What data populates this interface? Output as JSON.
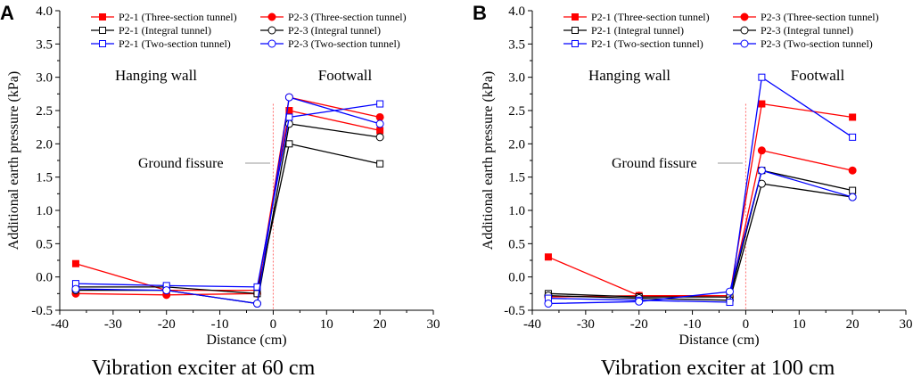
{
  "chart_data": [
    {
      "type": "line",
      "panel_label": "A",
      "title": "Vibration exciter at 60 cm",
      "xlabel": "Distance (cm)",
      "ylabel": "Additional earth pressure (kPa)",
      "xlim": [
        -40,
        30
      ],
      "ylim": [
        -0.5,
        4.0
      ],
      "xticks": [
        -40,
        -30,
        -20,
        -10,
        0,
        10,
        20,
        30
      ],
      "xtick_labels": [
        "-40",
        "-30",
        "-20",
        "-10",
        "0",
        "10",
        "20",
        "30"
      ],
      "yticks": [
        -0.5,
        0.0,
        0.5,
        1.0,
        1.5,
        2.0,
        2.5,
        3.0,
        3.5,
        4.0
      ],
      "ytick_labels": [
        "-0.5",
        "0.0",
        "0.5",
        "1.0",
        "1.5",
        "2.0",
        "2.5",
        "3.0",
        "3.5",
        "4.0"
      ],
      "x": [
        -37,
        -20,
        -3,
        3,
        20
      ],
      "series": [
        {
          "name": "P2-1 (Three-section tunnel)",
          "color": "#ff0000",
          "marker": "square-filled",
          "values": [
            0.2,
            -0.2,
            -0.2,
            2.5,
            2.2
          ]
        },
        {
          "name": "P2-3 (Three-section tunnel)",
          "color": "#ff0000",
          "marker": "circle-filled",
          "values": [
            -0.25,
            -0.27,
            -0.25,
            2.7,
            2.4
          ]
        },
        {
          "name": "P2-1 (Integral tunnel)",
          "color": "#000000",
          "marker": "square-open",
          "values": [
            -0.15,
            -0.15,
            -0.25,
            2.0,
            1.7
          ]
        },
        {
          "name": "P2-3 (Integral tunnel)",
          "color": "#000000",
          "marker": "circle-open",
          "values": [
            -0.2,
            -0.2,
            -0.4,
            2.3,
            2.1
          ]
        },
        {
          "name": "P2-1 (Two-section tunnel)",
          "color": "#0000ff",
          "marker": "square-open",
          "values": [
            -0.1,
            -0.13,
            -0.15,
            2.4,
            2.6
          ]
        },
        {
          "name": "P2-3 (Two-section tunnel)",
          "color": "#0000ff",
          "marker": "circle-open",
          "values": [
            -0.18,
            -0.2,
            -0.4,
            2.7,
            2.3
          ]
        }
      ],
      "annotations": {
        "hanging_wall": "Hanging wall",
        "footwall": "Footwall",
        "ground_fissure": "Ground fissure"
      },
      "fissure_x": 0,
      "legend_position": "top-center"
    },
    {
      "type": "line",
      "panel_label": "B",
      "title": "Vibration exciter at 100 cm",
      "xlabel": "Distance (cm)",
      "ylabel": "Additional earth pressure (kPa)",
      "xlim": [
        -40,
        30
      ],
      "ylim": [
        -0.5,
        4.0
      ],
      "xticks": [
        -40,
        -30,
        -20,
        -10,
        0,
        10,
        20,
        30
      ],
      "xtick_labels": [
        "-40",
        "-30",
        "-20",
        "-10",
        "0",
        "10",
        "20",
        "30"
      ],
      "yticks": [
        -0.5,
        0.0,
        0.5,
        1.0,
        1.5,
        2.0,
        2.5,
        3.0,
        3.5,
        4.0
      ],
      "ytick_labels": [
        "-0.5",
        "0.0",
        "0.5",
        "1.0",
        "1.5",
        "2.0",
        "2.5",
        "3.0",
        "3.5",
        "4.0"
      ],
      "x": [
        -37,
        -20,
        -3,
        3,
        20
      ],
      "series": [
        {
          "name": "P2-1 (Three-section tunnel)",
          "color": "#ff0000",
          "marker": "square-filled",
          "values": [
            0.3,
            -0.28,
            -0.28,
            2.6,
            2.4
          ]
        },
        {
          "name": "P2-3 (Three-section tunnel)",
          "color": "#ff0000",
          "marker": "circle-filled",
          "values": [
            -0.3,
            -0.28,
            -0.3,
            1.9,
            1.6
          ]
        },
        {
          "name": "P2-1 (Integral tunnel)",
          "color": "#000000",
          "marker": "square-open",
          "values": [
            -0.25,
            -0.3,
            -0.3,
            1.6,
            1.3
          ]
        },
        {
          "name": "P2-3 (Integral tunnel)",
          "color": "#000000",
          "marker": "circle-open",
          "values": [
            -0.28,
            -0.32,
            -0.35,
            1.4,
            1.2
          ]
        },
        {
          "name": "P2-1 (Two-section tunnel)",
          "color": "#0000ff",
          "marker": "square-open",
          "values": [
            -0.32,
            -0.35,
            -0.38,
            3.0,
            2.1
          ]
        },
        {
          "name": "P2-3 (Two-section tunnel)",
          "color": "#0000ff",
          "marker": "circle-open",
          "values": [
            -0.4,
            -0.37,
            -0.22,
            1.6,
            1.2
          ]
        }
      ],
      "annotations": {
        "hanging_wall": "Hanging wall",
        "footwall": "Footwall",
        "ground_fissure": "Ground fissure"
      },
      "fissure_x": 0,
      "legend_position": "top-center"
    }
  ]
}
